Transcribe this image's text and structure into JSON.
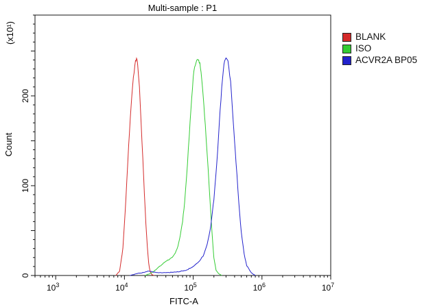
{
  "chart_data": {
    "type": "line",
    "title": "Multi-sample : P1",
    "xlabel": "FITC-A",
    "ylabel": "Count",
    "y_multiplier_label": "(x10¹)",
    "x_scale": "log",
    "xlim": [
      500,
      10000000
    ],
    "ylim": [
      0,
      290
    ],
    "x_ticks": [
      {
        "value": 1000,
        "base": "10",
        "exp": "3"
      },
      {
        "value": 10000,
        "base": "10",
        "exp": "4"
      },
      {
        "value": 100000,
        "base": "10",
        "exp": "5"
      },
      {
        "value": 1000000,
        "base": "10",
        "exp": "6"
      },
      {
        "value": 10000000,
        "base": "10",
        "exp": "7"
      }
    ],
    "y_ticks": [
      0,
      100,
      200
    ],
    "legend_position": "right",
    "series": [
      {
        "name": "BLANK",
        "color": "#d42a2a",
        "x": [
          7500,
          8500,
          9500,
          10500,
          11500,
          12500,
          13500,
          14500,
          15000,
          15600,
          16500,
          17500,
          18500,
          19500,
          20500,
          21500,
          22500,
          23500,
          25000,
          27000
        ],
        "y": [
          0,
          5,
          30,
          85,
          145,
          190,
          222,
          238,
          242,
          235,
          210,
          170,
          130,
          92,
          58,
          32,
          14,
          5,
          1,
          0
        ]
      },
      {
        "name": "ISO",
        "color": "#33cc33",
        "x": [
          20000,
          25000,
          30000,
          35000,
          40000,
          45000,
          50000,
          55000,
          60000,
          65000,
          70000,
          75000,
          80000,
          85000,
          90000,
          95000,
          100000,
          105000,
          110000,
          115000,
          120000,
          125000,
          130000,
          135000,
          140000,
          150000,
          160000,
          170000,
          180000,
          190000,
          200000,
          215000,
          235000,
          260000
        ],
        "y": [
          0,
          3,
          8,
          12,
          16,
          18,
          20,
          25,
          33,
          45,
          60,
          82,
          110,
          140,
          170,
          198,
          220,
          233,
          238,
          240,
          239,
          236,
          228,
          215,
          198,
          168,
          135,
          102,
          70,
          42,
          20,
          6,
          2,
          0
        ]
      },
      {
        "name": "ACVR2A BP05",
        "color": "#2222cc",
        "x": [
          12000,
          15000,
          18000,
          22000,
          26000,
          30000,
          40000,
          60000,
          80000,
          100000,
          120000,
          140000,
          160000,
          180000,
          200000,
          220000,
          240000,
          260000,
          280000,
          300000,
          320000,
          350000,
          380000,
          420000,
          460000,
          500000,
          550000,
          600000,
          700000,
          800000
        ],
        "y": [
          0,
          2,
          3,
          5,
          4,
          3,
          3,
          4,
          6,
          10,
          15,
          22,
          35,
          55,
          85,
          125,
          170,
          210,
          236,
          243,
          238,
          215,
          175,
          125,
          82,
          48,
          24,
          11,
          3,
          0
        ]
      }
    ]
  }
}
